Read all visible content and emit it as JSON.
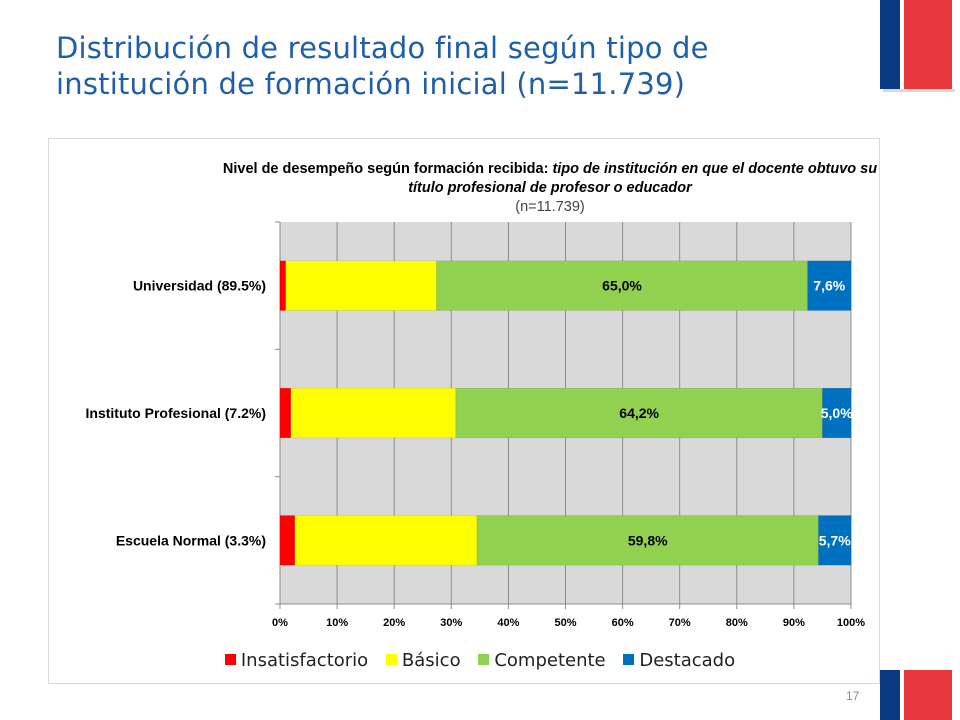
{
  "slide": {
    "title": "Distribución de resultado final según tipo de institución de formación inicial (n=11.739)",
    "page_number": "17"
  },
  "colors": {
    "title": "#1f5ea8",
    "flag_blue": "#0a3a82",
    "flag_red": "#e8373c"
  },
  "chart_data": {
    "type": "bar",
    "orientation": "horizontal",
    "stacked": true,
    "title": {
      "bold": "Nivel de desempeño según formación recibida:",
      "italic": "tipo de institución en que el docente obtuvo su título profesional de profesor o educador",
      "n": "(n=11.739)"
    },
    "categories": [
      "Universidad (89.5%)",
      "Instituto Profesional (7.2%)",
      "Escuela Normal (3.3%)"
    ],
    "series": [
      {
        "name": "Insatisfactorio",
        "color": "#ff0000",
        "values": [
          1.0,
          1.9,
          2.6
        ],
        "labels": [
          "",
          "",
          ""
        ]
      },
      {
        "name": "Básico",
        "color": "#ffff00",
        "values": [
          26.4,
          28.9,
          31.9
        ],
        "labels": [
          "",
          "",
          ""
        ]
      },
      {
        "name": "Competente",
        "color": "#92d050",
        "values": [
          65.0,
          64.2,
          59.8
        ],
        "labels": [
          "65,0%",
          "64,2%",
          "59,8%"
        ]
      },
      {
        "name": "Destacado",
        "color": "#0070c0",
        "values": [
          7.6,
          5.0,
          5.7
        ],
        "labels": [
          "7,6%",
          "5,0%",
          "5,7%"
        ]
      }
    ],
    "xlim": [
      0,
      100
    ],
    "xticks": [
      "0%",
      "10%",
      "20%",
      "30%",
      "40%",
      "50%",
      "60%",
      "70%",
      "80%",
      "90%",
      "100%"
    ],
    "grid": true,
    "plot_background": "#d9d9d9",
    "legend_position": "bottom"
  }
}
